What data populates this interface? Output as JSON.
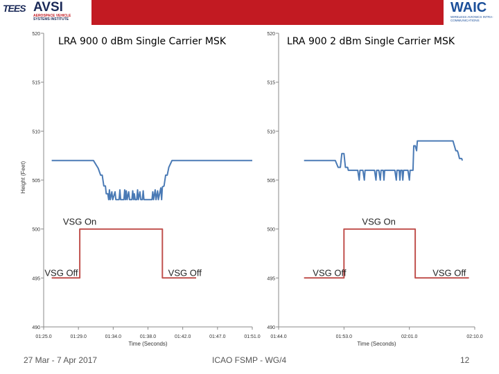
{
  "header": {
    "logo_left": "TEES",
    "logo_avsi": "AVSI",
    "logo_avsi_sub1": "AEROSPACE VEHICLE",
    "logo_avsi_sub2": "SYSTEMS INSTITUTE",
    "logo_right": "WAIC",
    "logo_right_sub": "WIRELESS AVIONICS INTRA-COMMUNICATIONS",
    "colors": {
      "band": "#c21a22",
      "navy": "#1b2a58"
    }
  },
  "footer": {
    "date": "27 Mar - 7 Apr 2017",
    "center": "ICAO FSMP - WG/4",
    "page": "12"
  },
  "chart_data": [
    {
      "type": "line",
      "title": "LRA 900 0 dBm Single Carrier MSK",
      "xlabel": "Time (Seconds)",
      "ylabel": "Height (Feet)",
      "ylim": [
        490,
        520
      ],
      "yticks": [
        "490",
        "495",
        "500",
        "505",
        "510",
        "515",
        "520"
      ],
      "xlim": [
        85,
        111
      ],
      "xticks": [
        "01:25.0",
        "01:29.0",
        "01:34.0",
        "01:38.0",
        "01:42.0",
        "01:47.0",
        "01:51.0"
      ],
      "colors": {
        "height": "#4a7ab5",
        "vsg": "#c0504d"
      },
      "series": [
        {
          "name": "Height",
          "points": [
            [
              86,
              507
            ],
            [
              91.2,
              507
            ],
            [
              91.8,
              506.2
            ],
            [
              92.1,
              505.5
            ],
            [
              92.3,
              505.5
            ],
            [
              92.5,
              504.4
            ],
            [
              92.7,
              504.4
            ],
            [
              92.8,
              503.6
            ],
            [
              93,
              503.6
            ],
            [
              93.1,
              503
            ],
            [
              93.2,
              504
            ],
            [
              93.3,
              503
            ],
            [
              93.5,
              503.8
            ],
            [
              93.6,
              503
            ],
            [
              93.9,
              503.8
            ],
            [
              94,
              503
            ],
            [
              94.4,
              503
            ],
            [
              94.5,
              504
            ],
            [
              94.6,
              503
            ],
            [
              95,
              503
            ],
            [
              95.1,
              504
            ],
            [
              95.2,
              503
            ],
            [
              95.3,
              503.9
            ],
            [
              95.4,
              503
            ],
            [
              95.6,
              503.8
            ],
            [
              95.7,
              503
            ],
            [
              96,
              503
            ],
            [
              96.1,
              503.9
            ],
            [
              96.2,
              503
            ],
            [
              96.3,
              503.6
            ],
            [
              96.4,
              503
            ],
            [
              96.6,
              503
            ],
            [
              96.7,
              504
            ],
            [
              96.8,
              503
            ],
            [
              97,
              503.8
            ],
            [
              97.1,
              503
            ],
            [
              97.3,
              503
            ],
            [
              97.4,
              503.9
            ],
            [
              97.5,
              503
            ],
            [
              98.5,
              503
            ],
            [
              98.6,
              503.8
            ],
            [
              98.7,
              503
            ],
            [
              98.9,
              504
            ],
            [
              99,
              503
            ],
            [
              99.2,
              503.9
            ],
            [
              99.3,
              503
            ],
            [
              99.6,
              504.2
            ],
            [
              99.7,
              503
            ],
            [
              99.8,
              504.3
            ],
            [
              100,
              504.4
            ],
            [
              100.2,
              505.5
            ],
            [
              100.4,
              505.5
            ],
            [
              100.6,
              506.3
            ],
            [
              101,
              507
            ],
            [
              111,
              507
            ]
          ]
        },
        {
          "name": "VSG",
          "points": [
            [
              86,
              495
            ],
            [
              89.5,
              495
            ],
            [
              89.5,
              500
            ],
            [
              99.8,
              500
            ],
            [
              99.8,
              495
            ],
            [
              104,
              495
            ]
          ]
        }
      ],
      "annotations": [
        {
          "text": "VSG On",
          "x": 89.5,
          "y": 500
        },
        {
          "text": "VSG Off",
          "x": 87.2,
          "y": 495
        },
        {
          "text": "VSG Off",
          "x": 102.6,
          "y": 495
        }
      ]
    },
    {
      "type": "line",
      "title": "LRA 900 2 dBm Single Carrier MSK",
      "xlabel": "Time (Seconds)",
      "ylabel": "",
      "ylim": [
        490,
        520
      ],
      "yticks": [
        "490",
        "495",
        "500",
        "505",
        "510",
        "515",
        "520"
      ],
      "xlim": [
        104,
        131
      ],
      "xticks": [
        "01:44.0",
        "01:53.0",
        "02:01.0",
        "02:10.0"
      ],
      "colors": {
        "height": "#4a7ab5",
        "vsg": "#c0504d"
      },
      "series": [
        {
          "name": "Height",
          "points": [
            [
              107.5,
              507
            ],
            [
              111.8,
              507
            ],
            [
              112.2,
              506.3
            ],
            [
              112.5,
              506.3
            ],
            [
              112.7,
              507.7
            ],
            [
              113,
              507.7
            ],
            [
              113.2,
              506.3
            ],
            [
              113.5,
              506.3
            ],
            [
              113.6,
              506
            ],
            [
              114.9,
              506
            ],
            [
              115.1,
              505
            ],
            [
              115.2,
              506
            ],
            [
              115.6,
              506
            ],
            [
              115.8,
              505
            ],
            [
              115.9,
              506
            ],
            [
              117.2,
              506
            ],
            [
              117.4,
              505
            ],
            [
              117.5,
              506
            ],
            [
              117.8,
              506
            ],
            [
              118,
              505
            ],
            [
              118.1,
              506
            ],
            [
              118.4,
              506
            ],
            [
              118.5,
              505
            ],
            [
              118.6,
              506
            ],
            [
              120,
              506
            ],
            [
              120.2,
              505
            ],
            [
              120.3,
              506
            ],
            [
              120.6,
              506
            ],
            [
              120.7,
              505
            ],
            [
              120.8,
              506
            ],
            [
              121,
              506
            ],
            [
              121.1,
              505
            ],
            [
              121.2,
              506
            ],
            [
              121.8,
              506
            ],
            [
              122,
              505
            ],
            [
              122.1,
              506
            ],
            [
              122.5,
              506
            ],
            [
              122.6,
              508.5
            ],
            [
              122.8,
              508.5
            ],
            [
              123,
              508
            ],
            [
              123.1,
              509
            ],
            [
              128,
              509
            ],
            [
              128.4,
              508
            ],
            [
              128.6,
              508
            ],
            [
              128.7,
              507.8
            ],
            [
              128.9,
              507.2
            ],
            [
              129.2,
              507.2
            ],
            [
              129.3,
              507
            ]
          ]
        },
        {
          "name": "VSG",
          "points": [
            [
              107.5,
              495
            ],
            [
              113,
              495
            ],
            [
              113,
              500
            ],
            [
              122.8,
              500
            ],
            [
              122.8,
              495
            ],
            [
              130.2,
              495
            ]
          ]
        }
      ],
      "annotations": [
        {
          "text": "VSG On",
          "x": 117.8,
          "y": 500
        },
        {
          "text": "VSG Off",
          "x": 111,
          "y": 495
        },
        {
          "text": "VSG Off",
          "x": 127.5,
          "y": 495
        }
      ]
    }
  ]
}
